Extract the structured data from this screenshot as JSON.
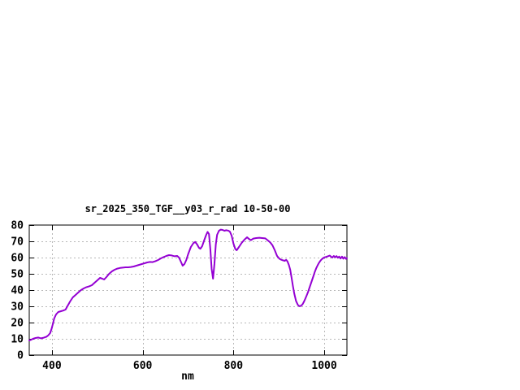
{
  "page": {
    "background": "#ffffff"
  },
  "chart_data": {
    "type": "line",
    "title": "sr_2025_350_TGF__y03_r_rad 10-50-00",
    "xlabel": "nm",
    "ylabel": "",
    "xlim": [
      350,
      1050
    ],
    "ylim": [
      0,
      80
    ],
    "x_ticks": [
      400,
      600,
      800,
      1000
    ],
    "y_ticks": [
      0,
      10,
      20,
      30,
      40,
      50,
      60,
      70,
      80
    ],
    "grid": true,
    "legend_position": "none",
    "line_color": "#9400d3",
    "grid_color": "#b8b8b8",
    "axis_color": "#000000",
    "series": [
      {
        "name": "sr_2025_350_TGF__y03_r_rad",
        "x": [
          350,
          354,
          358,
          364,
          370,
          376,
          382,
          388,
          392,
          396,
          399,
          402,
          405,
          409,
          414,
          420,
          425,
          430,
          434,
          440,
          446,
          452,
          458,
          464,
          470,
          476,
          482,
          488,
          494,
          500,
          506,
          511,
          515,
          520,
          526,
          532,
          538,
          544,
          550,
          556,
          562,
          568,
          574,
          580,
          586,
          592,
          598,
          604,
          610,
          616,
          622,
          628,
          634,
          640,
          646,
          652,
          658,
          664,
          670,
          676,
          680,
          684,
          688,
          692,
          696,
          700,
          706,
          712,
          716,
          720,
          724,
          727,
          731,
          736,
          740,
          743,
          746,
          749,
          752,
          755,
          758,
          761,
          764,
          768,
          772,
          776,
          780,
          784,
          788,
          792,
          796,
          800,
          804,
          807,
          812,
          818,
          824,
          830,
          834,
          838,
          844,
          850,
          857,
          863,
          870,
          876,
          881,
          886,
          891,
          896,
          901,
          905,
          909,
          913,
          916,
          919,
          922,
          925,
          928,
          931,
          934,
          938,
          942,
          946,
          949,
          952,
          955,
          958,
          961,
          964,
          967,
          970,
          973,
          976,
          979,
          982,
          985,
          988,
          991,
          994,
          997,
          1000,
          1004,
          1008,
          1012,
          1015,
          1018,
          1021,
          1024,
          1027,
          1030,
          1033,
          1036,
          1039,
          1042,
          1045,
          1048,
          1050
        ],
        "y": [
          9,
          9.4,
          10,
          10.5,
          10.8,
          10.3,
          10.7,
          11.3,
          12.2,
          13.5,
          16,
          19,
          22.5,
          25,
          26.5,
          27,
          27.4,
          28,
          30,
          33,
          35.5,
          37,
          38.5,
          40,
          41,
          41.8,
          42.3,
          43,
          44.5,
          46,
          47.5,
          47,
          46.5,
          48,
          50,
          51.5,
          52.5,
          53.2,
          53.6,
          53.8,
          54,
          54,
          54.2,
          54.5,
          55,
          55.5,
          56,
          56.5,
          57,
          57.3,
          57.2,
          57.8,
          58.5,
          59.5,
          60.3,
          61,
          61.5,
          61.3,
          60.8,
          61,
          60,
          57.5,
          55,
          56,
          58.5,
          62,
          66.5,
          69,
          69.6,
          68,
          66,
          65.4,
          67,
          71,
          74,
          75.8,
          74.5,
          65,
          53,
          47,
          56,
          68,
          74,
          76.5,
          77.2,
          77,
          76.5,
          76.8,
          76.6,
          76,
          73.5,
          68.5,
          65.3,
          64.5,
          66.5,
          69,
          71,
          72.5,
          71.5,
          70.7,
          71.7,
          72,
          72.2,
          72,
          71.8,
          70.5,
          69.3,
          67.5,
          64.5,
          61,
          59.3,
          58.7,
          58.3,
          58,
          58.6,
          57.6,
          55.5,
          52.5,
          47.5,
          42.5,
          37.8,
          33.2,
          30.8,
          30,
          30.4,
          31.2,
          32.6,
          34.5,
          36.5,
          38.6,
          41,
          43.5,
          46,
          48.5,
          51,
          53.2,
          55,
          56.6,
          57.8,
          58.8,
          59.5,
          60.1,
          60.4,
          60.8,
          61.2,
          60.6,
          60,
          61,
          60.2,
          60.9,
          59.9,
          60.6,
          59.4,
          60.6,
          59.3,
          60.3,
          59.2,
          59.6
        ]
      }
    ]
  }
}
